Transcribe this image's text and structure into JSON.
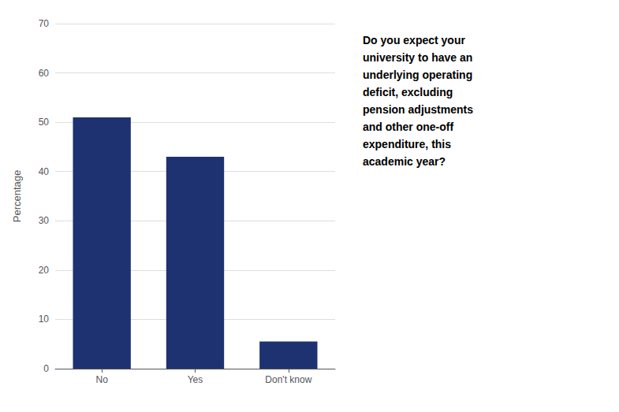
{
  "chart_data": {
    "type": "bar",
    "categories": [
      "No",
      "Yes",
      "Don't know"
    ],
    "values": [
      51,
      43,
      5.5
    ],
    "color": "#1e3272",
    "ylabel": "Percentage",
    "ylim": [
      0,
      70
    ],
    "yticks": [
      0,
      10,
      20,
      30,
      40,
      50,
      60,
      70
    ],
    "grid": true,
    "annotation": "Do you expect your\nuniversity to have an\nunderlying operating\ndeficit, excluding\npension adjustments\nand other one-off\nexpenditure, this\nacademic year?"
  }
}
